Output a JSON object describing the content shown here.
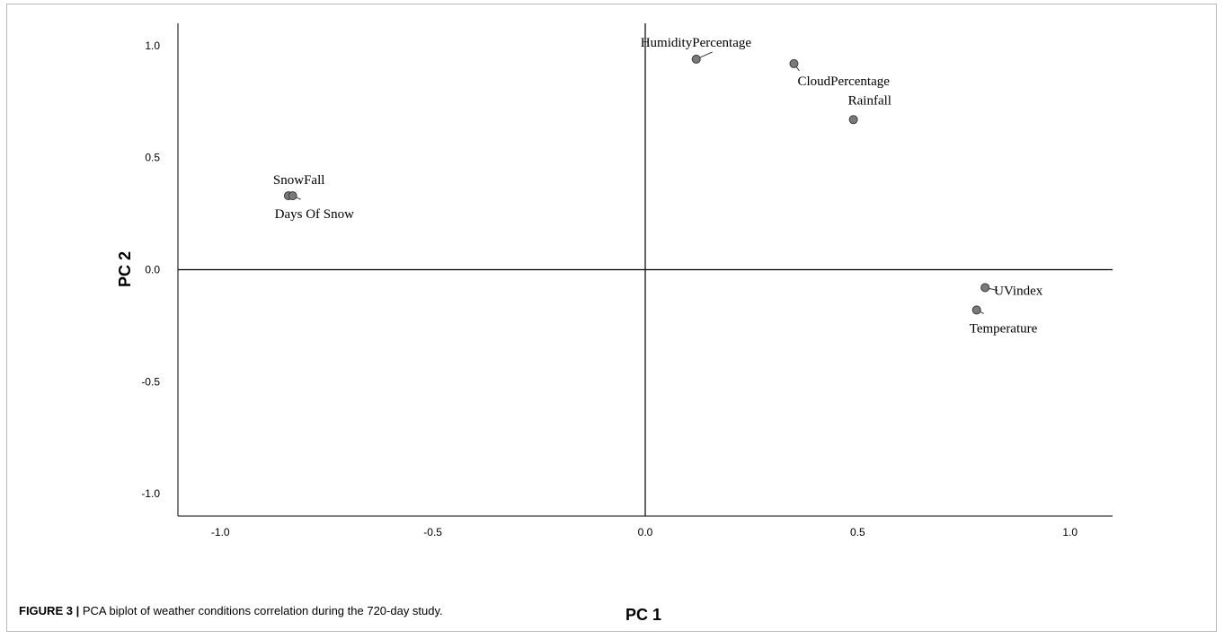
{
  "caption": {
    "label": "FIGURE 3 |",
    "text": " PCA biplot of weather conditions correlation during the 720-day study."
  },
  "chart_data": {
    "type": "scatter",
    "xlabel": "PC 1",
    "ylabel": "PC 2",
    "xlim": [
      -1.1,
      1.1
    ],
    "ylim": [
      -1.1,
      1.1
    ],
    "xticks": [
      "-1.0",
      "-0.5",
      "0.0",
      "0.5",
      "1.0"
    ],
    "yticks": [
      "1.0",
      "0.5",
      "0.0",
      "-0.5",
      "-1.0"
    ],
    "xtick_values": [
      -1.0,
      -0.5,
      0.0,
      0.5,
      1.0
    ],
    "ytick_values": [
      1.0,
      0.5,
      0.0,
      -0.5,
      -1.0
    ],
    "grid": false,
    "points": [
      {
        "label": "HumidityPercentage",
        "x": 0.12,
        "y": 0.94
      },
      {
        "label": "CloudPercentage",
        "x": 0.35,
        "y": 0.92
      },
      {
        "label": "Rainfall",
        "x": 0.49,
        "y": 0.67
      },
      {
        "label": "SnowFall",
        "x": -0.84,
        "y": 0.33
      },
      {
        "label": "Days Of Snow",
        "x": -0.83,
        "y": 0.33
      },
      {
        "label": "UVindex",
        "x": 0.8,
        "y": -0.08
      },
      {
        "label": "Temperature",
        "x": 0.78,
        "y": -0.18
      }
    ],
    "colors": {
      "point_fill": "#7a7a7a",
      "point_stroke": "#3a3a3a",
      "axis": "#000000"
    }
  }
}
